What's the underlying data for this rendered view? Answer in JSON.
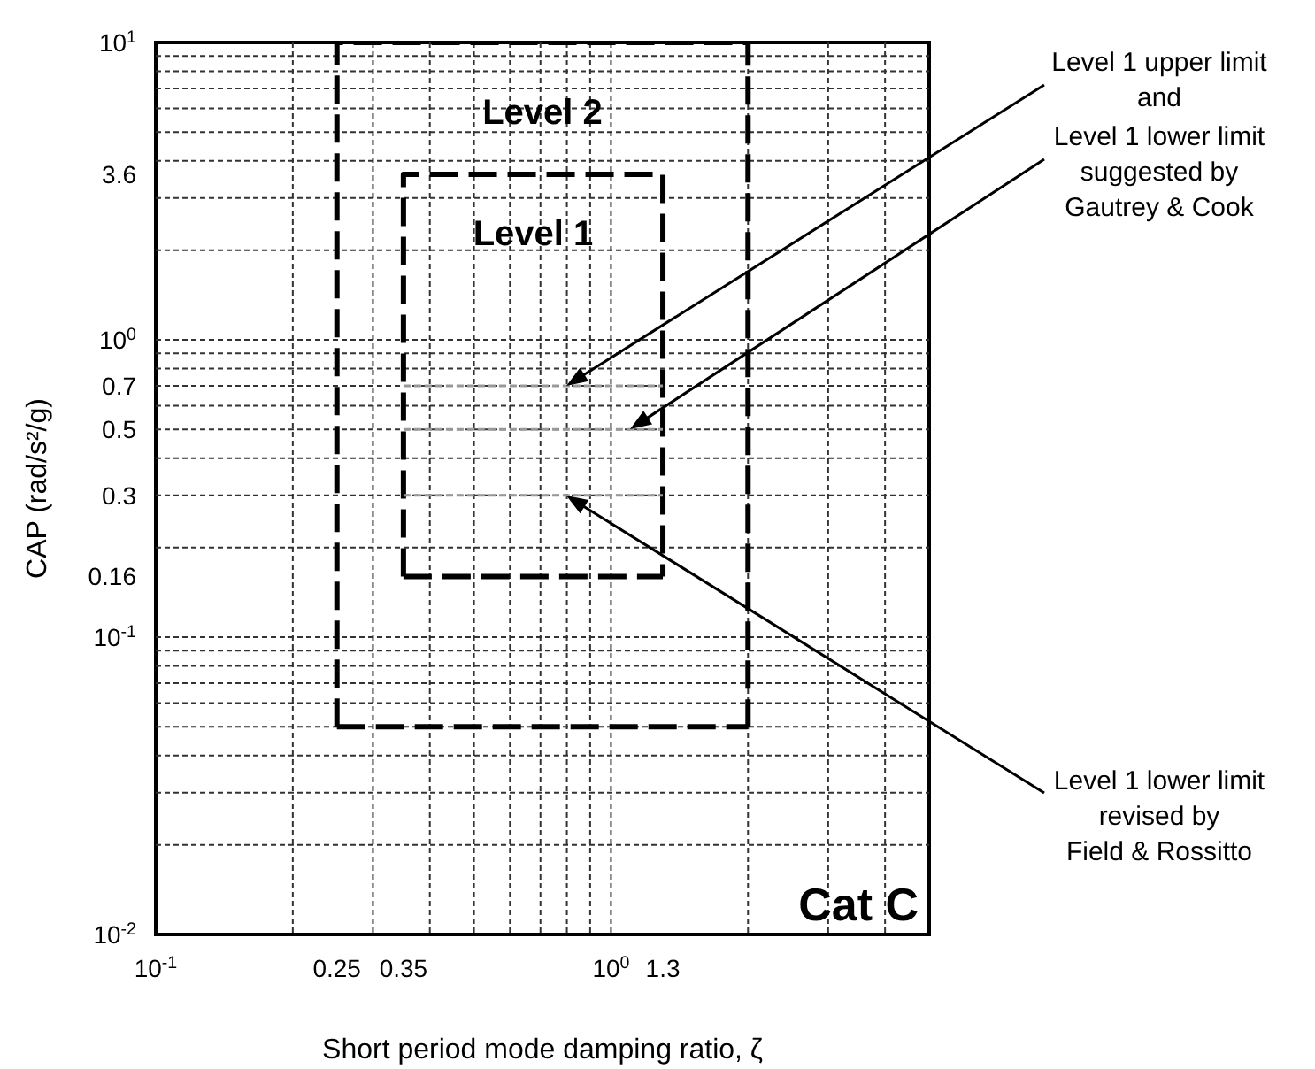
{
  "chart_data": {
    "type": "line",
    "xlabel": "Short period mode damping ratio, ζ",
    "ylabel": "CAP (rad/s²/g)",
    "log": "xy",
    "grid": true,
    "marker": "none",
    "xlim": [
      0.1,
      5
    ],
    "xticks": [
      {
        "value": 0.1,
        "label": "10$^{-1}$"
      },
      0.25,
      0.35,
      {
        "value": 1,
        "label": "10$^{0}$"
      },
      1.3
    ],
    "ylim": [
      0.01,
      10
    ],
    "yticks": [
      {
        "value": 10,
        "label": "10$^{1}$"
      },
      3.6,
      {
        "value": 1,
        "label": "10$^{0}$"
      },
      0.7,
      0.5,
      0.3,
      0.16,
      {
        "value": 0.1,
        "label": "10$^{-1}$"
      },
      {
        "value": 0.01,
        "label": "10$^{-2}$"
      }
    ],
    "series": [
      {
        "name": "Level 2",
        "color": "#000000",
        "line_style": "dashed",
        "x": [
          0.25,
          0.25,
          2,
          2
        ],
        "values": [
          0.05,
          10,
          10,
          0.05
        ]
      },
      {
        "color": "#000000",
        "line_style": "dashed",
        "x": [
          0.25,
          2
        ],
        "values": [
          0.05,
          0.05
        ]
      },
      {
        "name": "Level 1",
        "color": "#000000",
        "line_style": "dashed",
        "x": [
          0.35,
          0.35,
          1.3,
          1.3
        ],
        "values": [
          0.16,
          3.6,
          3.6,
          0.16
        ]
      },
      {
        "color": "#000000",
        "line_style": "dashed",
        "x": [
          0.35,
          1.3
        ],
        "values": [
          0.16,
          0.16
        ]
      },
      {
        "color": "#999999",
        "line_style": "dashed",
        "x": [
          0.35,
          1.3
        ],
        "values": [
          0.7,
          0.7
        ]
      },
      {
        "color": "#999999",
        "line_style": "dashed",
        "x": [
          0.35,
          1.3
        ],
        "values": [
          0.5,
          0.5
        ]
      },
      {
        "color": "#999999",
        "line_style": "dashed",
        "x": [
          0.35,
          1.3
        ],
        "values": [
          0.3,
          0.3
        ]
      }
    ],
    "annotations": [
      "Level 1 upper limit\nand",
      "Level 1 lower limit\nsuggested by\nGautrey & Cook",
      "Level 1 lower limit\nrevised by\nField & Rossitto",
      "Cat C"
    ]
  }
}
